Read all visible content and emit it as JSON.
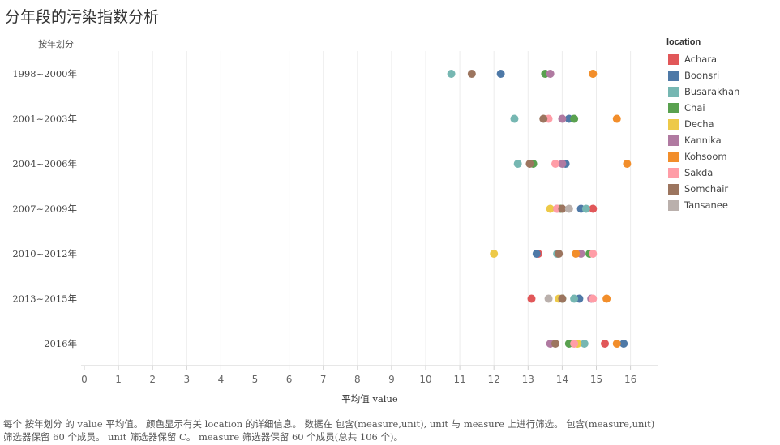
{
  "title": "分年段的污染指数分析",
  "row_header": "按年划分",
  "legend": {
    "title": "location",
    "items": [
      {
        "name": "Achara",
        "color": "#e15759"
      },
      {
        "name": "Boonsri",
        "color": "#4e79a7"
      },
      {
        "name": "Busarakhan",
        "color": "#76b7b2"
      },
      {
        "name": "Chai",
        "color": "#59a14f"
      },
      {
        "name": "Decha",
        "color": "#edc948"
      },
      {
        "name": "Kannika",
        "color": "#b07aa1"
      },
      {
        "name": "Kohsoom",
        "color": "#f28e2b"
      },
      {
        "name": "Sakda",
        "color": "#ff9da7"
      },
      {
        "name": "Somchair",
        "color": "#9c755f"
      },
      {
        "name": "Tansanee",
        "color": "#bab0ac"
      }
    ]
  },
  "caption_line1": "每个 按年划分 的 value 平均值。 颜色显示有关 location 的详细信息。 数据在 包含(measure,unit), unit 与 measure 上进行筛选。 包含(measure,unit)",
  "caption_line2": "筛选器保留 60 个成员。 unit 筛选器保留 C。 measure 筛选器保留 60 个成员(总共 106 个)。",
  "chart_data": {
    "type": "scatter",
    "title": "分年段的污染指数分析",
    "xlabel": "平均值 value",
    "ylabel": "按年划分",
    "xlim": [
      0,
      16
    ],
    "xticks": [
      0,
      1,
      2,
      3,
      4,
      5,
      6,
      7,
      8,
      9,
      10,
      11,
      12,
      13,
      14,
      15,
      16
    ],
    "categories": [
      "1998~2000年",
      "2001~2003年",
      "2004~2006年",
      "2007~2009年",
      "2010~2012年",
      "2013~2015年",
      "2016年"
    ],
    "grid": "vertical",
    "legend_position": "right",
    "series": [
      {
        "name": "Achara",
        "values": [
          null,
          null,
          null,
          14.9,
          13.3,
          13.1,
          15.25
        ]
      },
      {
        "name": "Boonsri",
        "values": [
          12.2,
          14.2,
          14.1,
          14.55,
          13.25,
          14.5,
          15.8
        ]
      },
      {
        "name": "Busarakhan",
        "values": [
          10.75,
          12.6,
          12.7,
          14.7,
          13.85,
          14.35,
          14.65
        ]
      },
      {
        "name": "Chai",
        "values": [
          13.5,
          14.35,
          13.15,
          13.95,
          14.8,
          14.0,
          14.2
        ]
      },
      {
        "name": "Decha",
        "values": [
          14.9,
          null,
          null,
          13.65,
          12.0,
          13.9,
          14.45
        ]
      },
      {
        "name": "Kannika",
        "values": [
          13.65,
          14.0,
          14.0,
          13.85,
          14.55,
          14.85,
          13.65
        ]
      },
      {
        "name": "Kohsoom",
        "values": [
          14.9,
          15.6,
          15.9,
          null,
          14.4,
          15.3,
          15.6
        ]
      },
      {
        "name": "Sakda",
        "values": [
          null,
          13.6,
          13.8,
          13.85,
          14.9,
          14.9,
          14.35
        ]
      },
      {
        "name": "Somchair",
        "values": [
          11.35,
          13.45,
          13.05,
          14.0,
          13.9,
          14.0,
          13.8
        ]
      },
      {
        "name": "Tansanee",
        "values": [
          null,
          null,
          null,
          14.2,
          null,
          13.6,
          null
        ]
      }
    ]
  }
}
